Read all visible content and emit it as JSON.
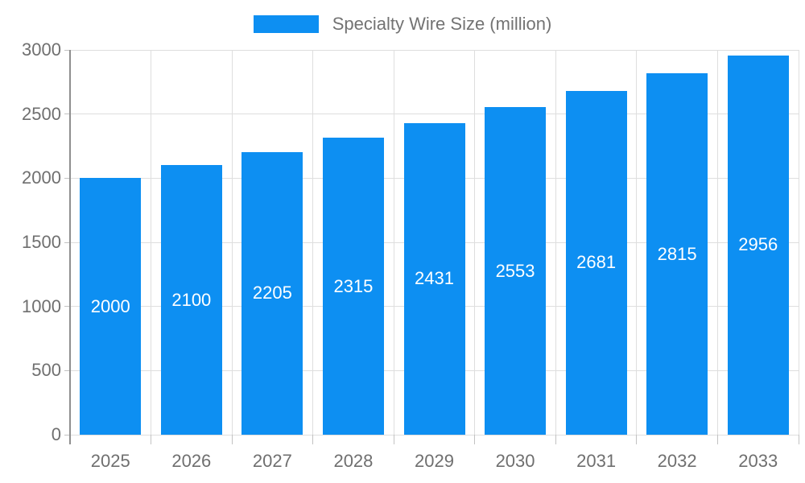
{
  "chart_data": {
    "type": "bar",
    "title": "Specialty Wire Size (million)",
    "legend": {
      "label": "Specialty Wire Size (million)",
      "position": "top"
    },
    "categories": [
      "2025",
      "2026",
      "2027",
      "2028",
      "2029",
      "2030",
      "2031",
      "2032",
      "2033"
    ],
    "values": [
      2000,
      2100,
      2205,
      2315,
      2431,
      2553,
      2681,
      2815,
      2956
    ],
    "xlabel": "",
    "ylabel": "",
    "ylim": [
      0,
      3000
    ],
    "yticks": [
      0,
      500,
      1000,
      1500,
      2000,
      2500,
      3000
    ],
    "grid": true,
    "bar_value_labels": true,
    "colors": {
      "bar": "#0d8ff2",
      "value_label": "#ffffff",
      "axis_text": "#6f6f6f",
      "legend_text": "#737373",
      "gridline": "#dedede",
      "axis_line": "#8f8f8f",
      "tick": "#c2c2c2",
      "background": "#ffffff"
    }
  }
}
